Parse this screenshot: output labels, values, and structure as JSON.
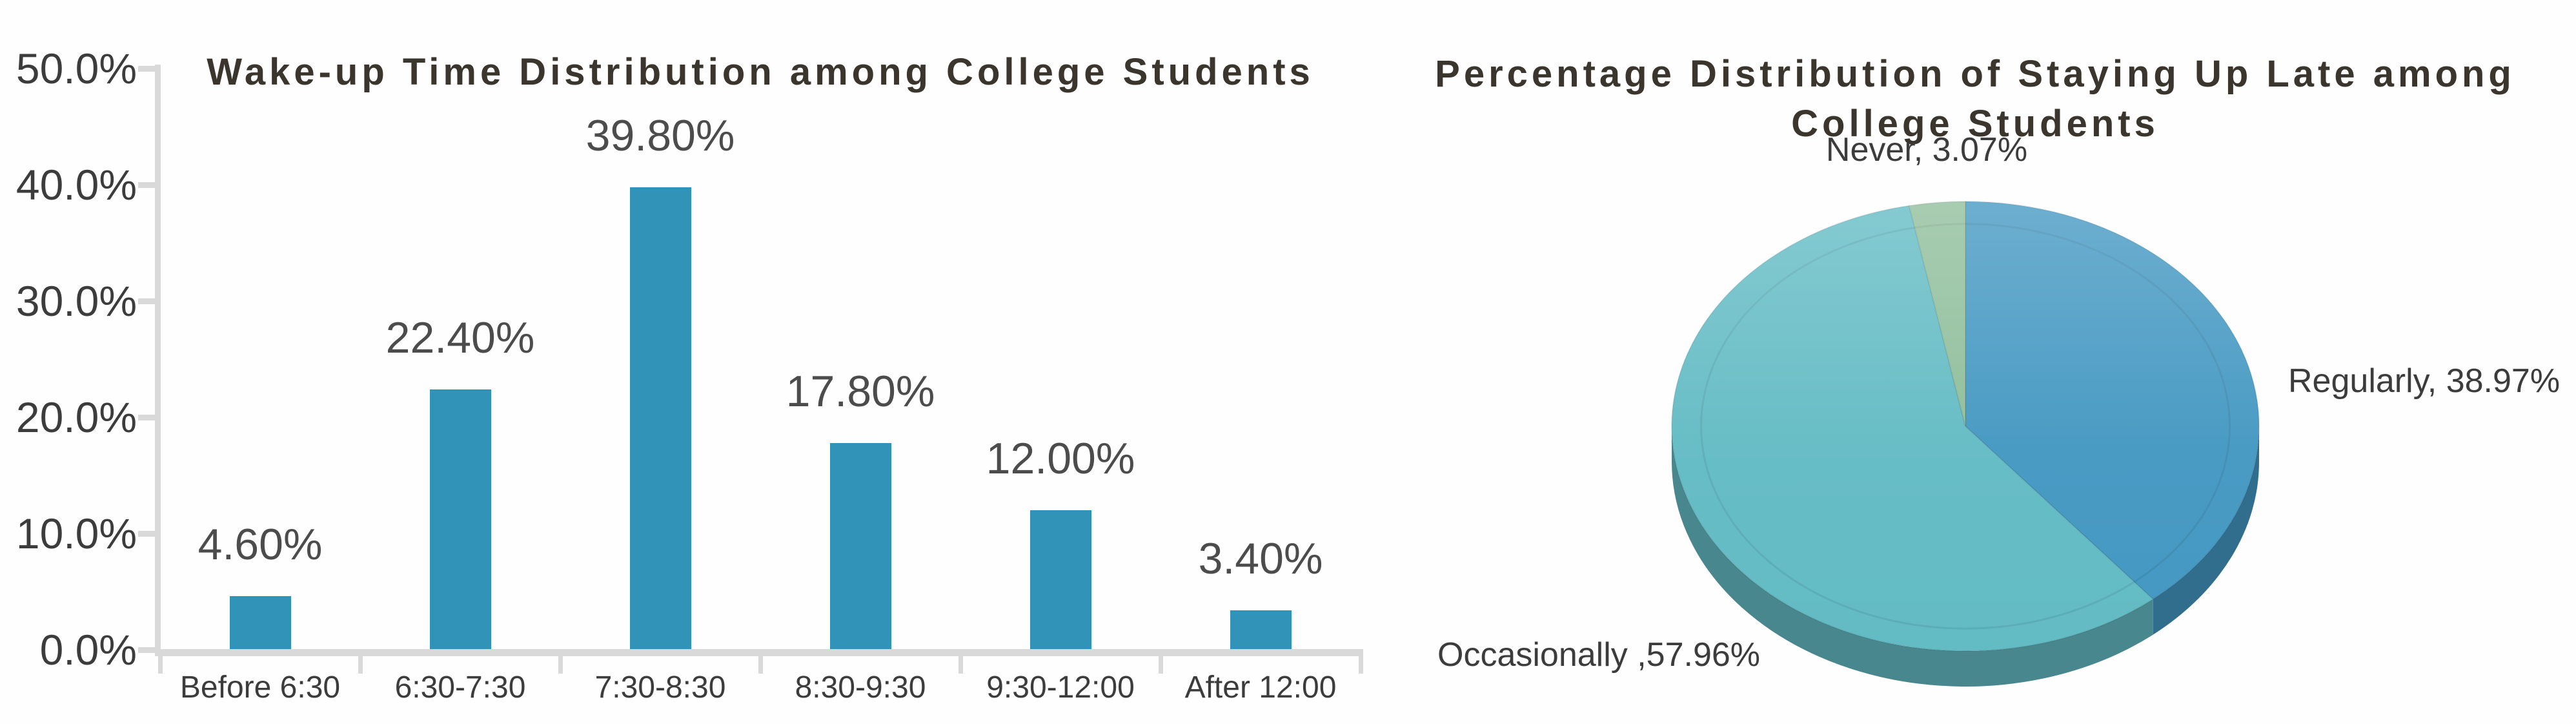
{
  "chart_data": [
    {
      "type": "bar",
      "title": "Wake-up Time Distribution among College Students",
      "categories": [
        "Before 6:30",
        "6:30-7:30",
        "7:30-8:30",
        "8:30-9:30",
        "9:30-12:00",
        "After 12:00"
      ],
      "values": [
        4.6,
        22.4,
        39.8,
        17.8,
        12.0,
        3.4
      ],
      "value_labels": [
        "4.60%",
        "22.40%",
        "39.80%",
        "17.80%",
        "12.00%",
        "3.40%"
      ],
      "y_ticks": [
        "50.0%",
        "40.0%",
        "30.0%",
        "20.0%",
        "10.0%",
        "0.0%"
      ],
      "ylim": [
        0,
        50
      ],
      "xlabel": "",
      "ylabel": "",
      "grid": false,
      "legend": "none",
      "bar_color": "#3293b8",
      "axis_color": "#d9d9d9"
    },
    {
      "type": "pie",
      "title": "Percentage Distribution of Staying Up Late among College Students",
      "title_lines": [
        "Percentage Distribution of Staying Up Late among",
        "College Students"
      ],
      "effect": "3d",
      "start": "top",
      "direction": "clockwise",
      "legend": "none",
      "slices": [
        {
          "label": "Regularly",
          "value": 38.97,
          "display": "Regularly, 38.97%",
          "color": "#4498c2",
          "side_color": "#316d8c"
        },
        {
          "label": "Occasionally",
          "value": 57.96,
          "display": "Occasionally ,57.96%",
          "color": "#63bbc4",
          "side_color": "#47878d"
        },
        {
          "label": "Never",
          "value": 3.07,
          "display": "Never, 3.07%",
          "color": "#8fbe9b",
          "side_color": "#67896f"
        }
      ]
    }
  ]
}
